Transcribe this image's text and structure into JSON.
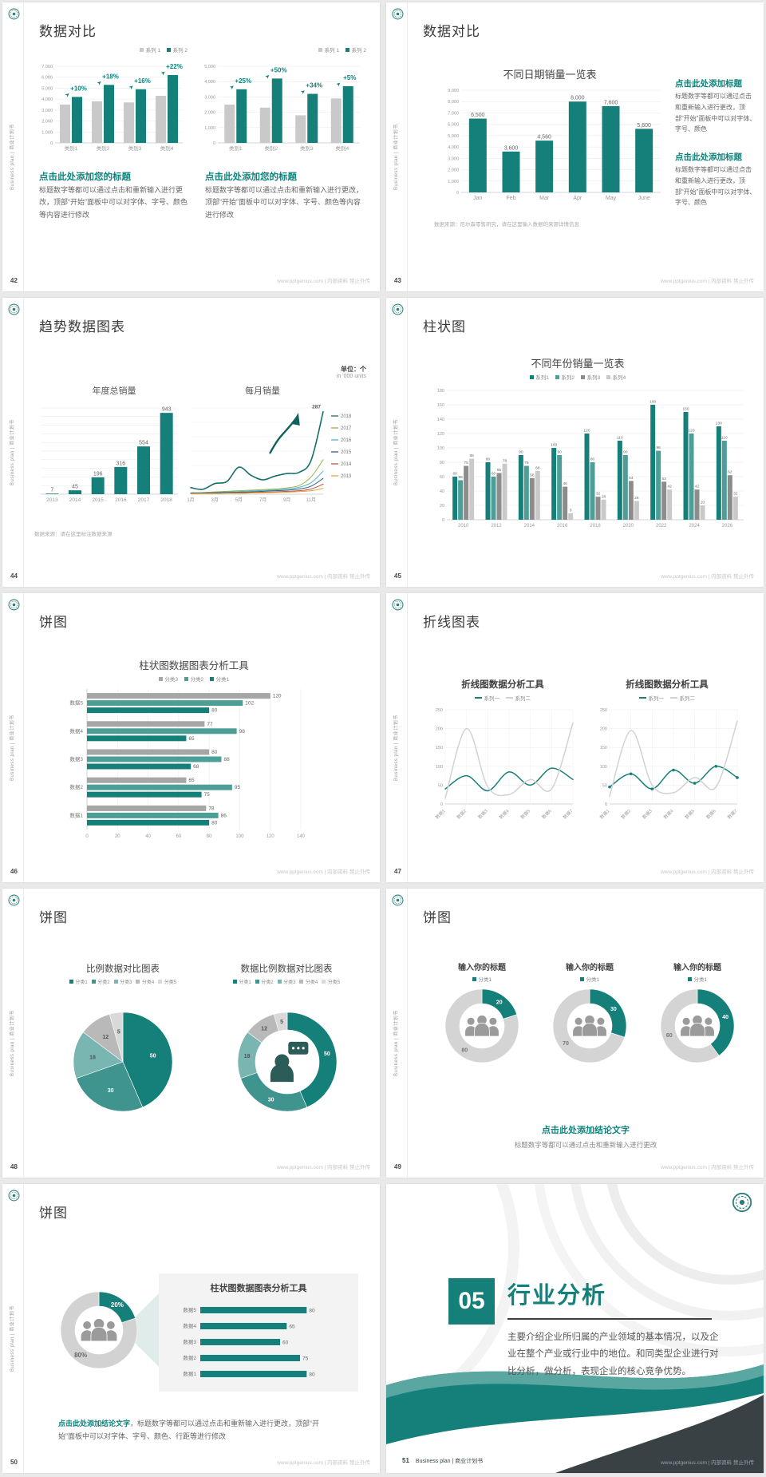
{
  "page": {
    "background": "#e9e9e9"
  },
  "chrome": {
    "vertical_label": "Business plan | 商业计划书",
    "footer_site": "www.pptgenius.com | 内部资料 禁止外传"
  },
  "colors": {
    "teal": "#157f79",
    "teal_mid": "#4e9e98",
    "teal_light": "#79b5b1",
    "gray": "#a6a6a6",
    "gray_light": "#c9c9c9",
    "heading_teal": "#0e837c"
  },
  "slides": {
    "s42": {
      "page_no": "42",
      "title": "数据对比",
      "heading": "点击此处添加您的标题",
      "body": "标题数字等都可以通过点击和重新输入进行更改，顶部“开始”面板中可以对字体、字号、颜色等内容进行修改"
    },
    "s43": {
      "page_no": "43",
      "title": "数据对比",
      "heading": "点击此处添加标题",
      "body": "标题数字等都可以通过点击和重新输入进行更改，顶部“开始”面板中可以对字体、字号、颜色",
      "note": "数据来源：尼尔森零售研究，请在这里输入数据的来源详情信息"
    },
    "s44": {
      "page_no": "44",
      "title": "趋势数据图表",
      "unit": "单位：个",
      "unit2": "in '000 units",
      "note": "数据来源：请在这里标注数据来源"
    },
    "s45": {
      "page_no": "45",
      "title": "柱状图"
    },
    "s46": {
      "page_no": "46",
      "title": "饼图"
    },
    "s47": {
      "page_no": "47",
      "title": "折线图表"
    },
    "s48": {
      "page_no": "48",
      "title": "饼图"
    },
    "s49": {
      "page_no": "49",
      "title": "饼图",
      "block_title": "输入你的标题",
      "conclusion": "点击此处添加结论文字",
      "conclusion_body": "标题数字等都可以通过点击和重新输入进行更改"
    },
    "s50": {
      "page_no": "50",
      "title": "饼图",
      "lead": "点击此处添加结论文字",
      "lead_body": "，标题数字等都可以通过点击和重新输入进行更改，顶部“开始”面板中可以对字体、字号、颜色、行距等进行修改"
    },
    "s51": {
      "page_no": "51",
      "number": "05",
      "title": "行业分析",
      "body": "主要介绍企业所归属的产业领域的基本情况，以及企业在整个产业或行业中的地位。和同类型企业进行对比分析，做分析，表现企业的核心竞争优势。",
      "footer": "Business plan | 商业计划书"
    }
  },
  "chart_data": [
    {
      "type": "bar",
      "title": "",
      "categories": [
        "类别1",
        "类别2",
        "类别3",
        "类别4"
      ],
      "ylim": [
        0,
        7000
      ],
      "ystep": 1000,
      "series": [
        {
          "name": "系列 1",
          "color": "#c9c9c9",
          "values": [
            3500,
            3800,
            3700,
            4300
          ]
        },
        {
          "name": "系列 2",
          "color": "#157f79",
          "values": [
            4200,
            5300,
            4900,
            6200
          ]
        }
      ],
      "annotations": [
        "+10%",
        "+18%",
        "+16%",
        "+22%"
      ]
    },
    {
      "type": "bar",
      "title": "",
      "categories": [
        "类别1",
        "类别2",
        "类别3",
        "类别4"
      ],
      "ylim": [
        0,
        5000
      ],
      "ystep": 1000,
      "series": [
        {
          "name": "系列 1",
          "color": "#c9c9c9",
          "values": [
            2500,
            2300,
            1800,
            2900
          ]
        },
        {
          "name": "系列 2",
          "color": "#157f79",
          "values": [
            3500,
            4200,
            3200,
            3700
          ]
        }
      ],
      "annotations": [
        "+25%",
        "+50%",
        "+34%",
        "+5%"
      ]
    },
    {
      "type": "bar",
      "title": "不同日期销量一览表",
      "categories": [
        "Jan",
        "Feb",
        "Mar",
        "Apr",
        "May",
        "June"
      ],
      "ylim": [
        0,
        9000
      ],
      "ystep": 1000,
      "series": [
        {
          "name": "销量",
          "color": "#157f79",
          "values": [
            6500,
            3600,
            4560,
            8000,
            7600,
            5600
          ]
        }
      ],
      "labels": [
        "6,500",
        "3,600",
        "4,560",
        "8,000",
        "7,600",
        "5,600"
      ]
    },
    {
      "type": "bar",
      "title": "年度总销量",
      "categories": [
        "2013",
        "2014",
        "2015",
        "2016",
        "2017",
        "2018"
      ],
      "ylim": [
        0,
        1000
      ],
      "ystep": 100,
      "series": [
        {
          "name": "年度总销量",
          "color": "#157f79",
          "values": [
            7,
            45,
            196,
            316,
            554,
            943
          ]
        }
      ]
    },
    {
      "type": "line",
      "title": "每月销量",
      "ylim": [
        0,
        300
      ],
      "ystep": 50,
      "x": [
        "1月",
        "2月",
        "3月",
        "4月",
        "5月",
        "6月",
        "7月",
        "8月",
        "9月",
        "10月",
        "11月",
        "12月"
      ],
      "xticks": [
        "1月",
        "3月",
        "5月",
        "7月",
        "9月",
        "11月"
      ],
      "end_label": "287",
      "series": [
        {
          "name": "2018",
          "color": "#156f6b",
          "width": 1.6,
          "values": [
            23,
            17,
            37,
            44,
            94,
            66,
            50,
            63,
            72,
            76,
            118,
            287
          ]
        },
        {
          "name": "2017",
          "color": "#96b43e",
          "values": [
            5,
            6,
            8,
            10,
            12,
            14,
            16,
            18,
            22,
            30,
            60,
            120
          ]
        },
        {
          "name": "2016",
          "color": "#4db3d4",
          "values": [
            4,
            5,
            6,
            8,
            9,
            11,
            13,
            15,
            18,
            24,
            40,
            80
          ]
        },
        {
          "name": "2015",
          "color": "#2f5d8a",
          "values": [
            3,
            4,
            5,
            6,
            7,
            8,
            10,
            12,
            14,
            18,
            28,
            55
          ]
        },
        {
          "name": "2014",
          "color": "#c3533f",
          "values": [
            2,
            3,
            3,
            4,
            5,
            6,
            7,
            8,
            10,
            12,
            18,
            35
          ]
        },
        {
          "name": "2013",
          "color": "#e2a63d",
          "values": [
            1,
            2,
            2,
            3,
            3,
            4,
            5,
            6,
            7,
            9,
            12,
            20
          ]
        }
      ]
    },
    {
      "type": "bar",
      "title": "不同年份销量一览表",
      "categories": [
        "2010",
        "2012",
        "2014",
        "2016",
        "2018",
        "2020",
        "2022",
        "2024",
        "2026"
      ],
      "ylim": [
        0,
        180
      ],
      "ystep": 20,
      "series": [
        {
          "name": "系列1",
          "color": "#157f79",
          "values": [
            60,
            80,
            90,
            100,
            120,
            110,
            160,
            150,
            130
          ]
        },
        {
          "name": "系列2",
          "color": "#4e9e98",
          "values": [
            55,
            60,
            75,
            90,
            80,
            90,
            96,
            120,
            110
          ]
        },
        {
          "name": "系列3",
          "color": "#8c8c8c",
          "values": [
            75,
            65,
            58,
            46,
            32,
            54,
            53,
            42,
            62
          ]
        },
        {
          "name": "系列4",
          "color": "#c9c9c9",
          "values": [
            85,
            78,
            68,
            9,
            28,
            26,
            42,
            20,
            32
          ]
        }
      ]
    },
    {
      "type": "bar-horizontal",
      "title": "柱状图数据图表分析工具",
      "categories": [
        "数据1",
        "数据2",
        "数据3",
        "数据4",
        "数据5"
      ],
      "xlim": [
        0,
        140
      ],
      "xstep": 20,
      "series": [
        {
          "name": "分类3",
          "color": "#a6a6a6",
          "values": [
            78,
            65,
            80,
            77,
            120
          ]
        },
        {
          "name": "分类2",
          "color": "#4e9e98",
          "values": [
            86,
            95,
            88,
            98,
            102
          ]
        },
        {
          "name": "分类1",
          "color": "#157f79",
          "values": [
            80,
            75,
            68,
            65,
            80
          ]
        }
      ]
    },
    {
      "type": "line",
      "title": "折线图数据分析工具",
      "ylim": [
        0,
        250
      ],
      "ystep": 50,
      "x": [
        "数据1",
        "数据2",
        "数据3",
        "数据4",
        "数据5",
        "数据6",
        "数据7"
      ],
      "series": [
        {
          "name": "系列一",
          "color": "#157f79",
          "width": 1.5,
          "values": [
            40,
            75,
            35,
            85,
            50,
            95,
            65
          ]
        },
        {
          "name": "系列二",
          "color": "#d2d2d2",
          "width": 1.5,
          "values": [
            15,
            200,
            45,
            25,
            65,
            40,
            215
          ]
        }
      ]
    },
    {
      "type": "line",
      "title": "折线图数据分析工具",
      "ylim": [
        0,
        250
      ],
      "ystep": 50,
      "x": [
        "数据1",
        "数据2",
        "数据3",
        "数据4",
        "数据5",
        "数据6",
        "数据7"
      ],
      "series": [
        {
          "name": "系列一",
          "color": "#157f79",
          "width": 1.5,
          "values": [
            45,
            80,
            40,
            90,
            55,
            100,
            70
          ]
        },
        {
          "name": "系列二",
          "color": "#d2d2d2",
          "width": 1.5,
          "values": [
            20,
            195,
            50,
            30,
            70,
            45,
            220
          ]
        }
      ]
    },
    {
      "type": "pie",
      "title": "比例数据对比图表",
      "labels": [
        "分类1",
        "分类2",
        "分类3",
        "分类4",
        "分类5"
      ],
      "values": [
        50,
        30,
        18,
        12,
        5
      ],
      "colors": [
        "#157f79",
        "#3f948f",
        "#79b5b1",
        "#b9b9b9",
        "#d9d9d9"
      ]
    },
    {
      "type": "donut",
      "title": "数据比例数据对比图表",
      "labels": [
        "分类1",
        "分类2",
        "分类3",
        "分类4",
        "分类5"
      ],
      "values": [
        50,
        30,
        18,
        12,
        5
      ],
      "colors": [
        "#157f79",
        "#3f948f",
        "#79b5b1",
        "#b9b9b9",
        "#d9d9d9"
      ],
      "center_icon": "person-chat"
    },
    {
      "type": "donut",
      "title": "输入你的标题",
      "labels": [
        "分类1"
      ],
      "values": [
        20,
        80
      ],
      "colors": [
        "#157f79",
        "#d4d4d4"
      ],
      "center_icon": "people"
    },
    {
      "type": "donut",
      "title": "输入你的标题",
      "labels": [
        "分类1"
      ],
      "values": [
        30,
        70
      ],
      "colors": [
        "#157f79",
        "#d4d4d4"
      ],
      "center_icon": "people"
    },
    {
      "type": "donut",
      "title": "输入你的标题",
      "labels": [
        "分类1"
      ],
      "values": [
        40,
        60
      ],
      "colors": [
        "#157f79",
        "#d4d4d4"
      ],
      "center_icon": "people"
    },
    {
      "type": "donut",
      "title": "",
      "labels": [
        "20%",
        "80%"
      ],
      "values": [
        20,
        80
      ],
      "colors": [
        "#157f79",
        "#d2d2d2"
      ],
      "center_icon": "people"
    },
    {
      "type": "bar-horizontal",
      "title": "柱状图数据图表分析工具",
      "categories": [
        "数据1",
        "数据2",
        "数据3",
        "数据4",
        "数据5"
      ],
      "xlim": [
        0,
        90
      ],
      "series": [
        {
          "name": "数据",
          "color": "#157f79",
          "values": [
            80,
            75,
            60,
            65,
            80
          ]
        }
      ]
    }
  ]
}
